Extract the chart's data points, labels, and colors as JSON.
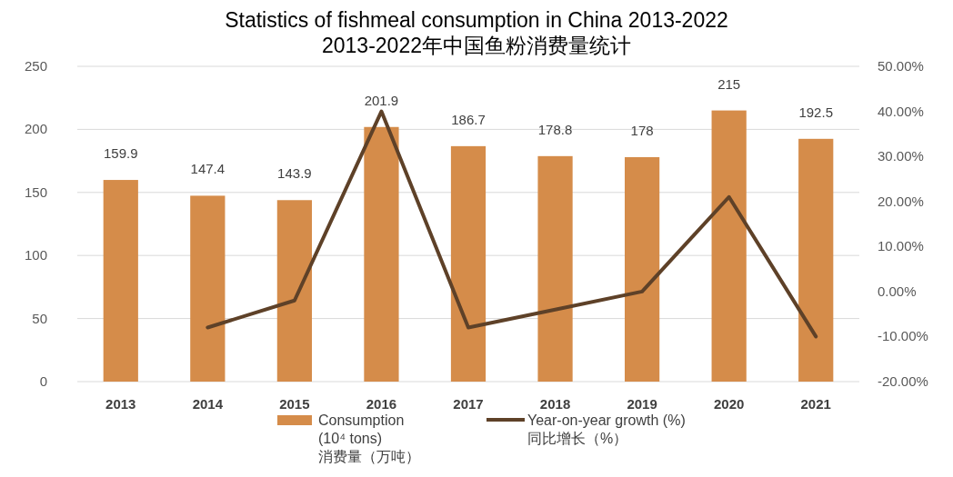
{
  "chart_data": {
    "type": "bar",
    "title": "Statistics of fishmeal consumption in China 2013-2022\n2013-2022年中国鱼粉消费量统计",
    "categories": [
      "2013",
      "2014",
      "2015",
      "2016",
      "2017",
      "2018",
      "2019",
      "2020",
      "2021"
    ],
    "series": [
      {
        "name": "Consumption\n(10⁴ tons)\n消费量（万吨）",
        "color": "#d58c4a",
        "values": [
          159.9,
          147.4,
          143.9,
          201.9,
          186.7,
          178.8,
          178,
          215,
          192.5
        ],
        "value_labels": [
          "159.9",
          "147.4",
          "143.9",
          "201.9",
          "186.7",
          "178.8",
          "178",
          "215",
          "192.5"
        ]
      },
      {
        "name": "Year-on-year growth (%)\n同比增长（%）",
        "type": "line",
        "axis": "y2",
        "color": "#5e4128",
        "values": [
          null,
          -8,
          -2,
          40,
          -8,
          -4,
          0,
          21,
          -10
        ]
      }
    ],
    "ylim": [
      0,
      250
    ],
    "yticks": [
      0,
      50,
      100,
      150,
      200,
      250
    ],
    "y2lim": [
      -20,
      50
    ],
    "y2ticks": [
      {
        "value": -20,
        "label": "-20.00%"
      },
      {
        "value": -10,
        "label": "-10.00%"
      },
      {
        "value": 0,
        "label": "0.00%"
      },
      {
        "value": 10,
        "label": "10.00%"
      },
      {
        "value": 20,
        "label": "20.00%"
      },
      {
        "value": 30,
        "label": "30.00%"
      },
      {
        "value": 40,
        "label": "40.00%"
      },
      {
        "value": 50,
        "label": "50.00%"
      }
    ],
    "grid": "y",
    "legend": "bottom",
    "marker": "none",
    "line_style": "solid"
  }
}
